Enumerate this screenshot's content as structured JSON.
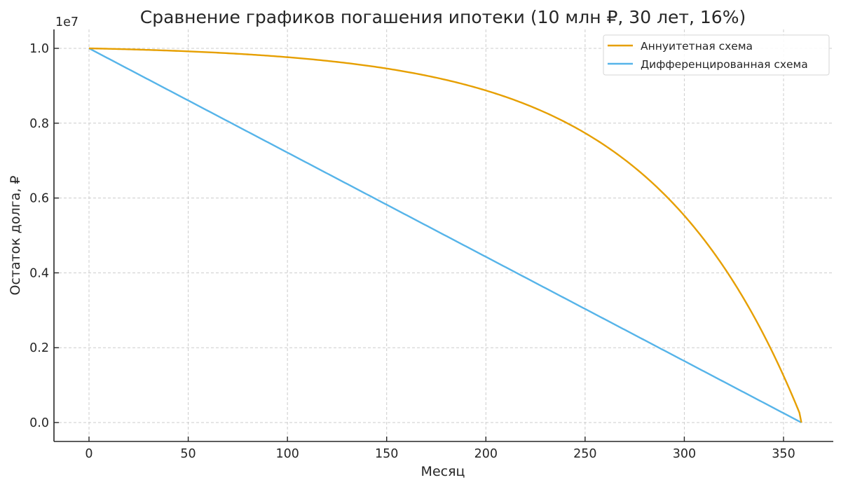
{
  "chart_data": {
    "type": "line",
    "title": "Сравнение графиков погашения ипотеки (10 млн ₽, 30 лет, 16%)",
    "xlabel": "Месяц",
    "ylabel": "Остаток долга, ₽",
    "y_offset_label": "1e7",
    "xlim": [
      -18,
      378
    ],
    "ylim": [
      -0.05,
      1.05
    ],
    "y_scale": 10000000,
    "x_ticks": [
      0,
      50,
      100,
      150,
      200,
      250,
      300,
      350
    ],
    "x_tick_labels": [
      "0",
      "50",
      "100",
      "150",
      "200",
      "250",
      "300",
      "350"
    ],
    "y_ticks": [
      0.0,
      0.2,
      0.4,
      0.6,
      0.8,
      1.0
    ],
    "y_tick_labels": [
      "0.0",
      "0.2",
      "0.4",
      "0.6",
      "0.8",
      "1.0"
    ],
    "grid": true,
    "legend_position": "upper right",
    "loan": {
      "principal": 10000000,
      "annual_rate": 0.16,
      "months": 360
    },
    "x": [
      0,
      30,
      60,
      90,
      120,
      150,
      180,
      210,
      240,
      270,
      300,
      330,
      359
    ],
    "series": [
      {
        "name": "Аннуитетная схема",
        "color": "#E69F00",
        "values": [
          10000000,
          9960000,
          9896000,
          9800000,
          9660000,
          9460000,
          9150000,
          8700000,
          8020000,
          7010000,
          5510000,
          3270000,
          0
        ]
      },
      {
        "name": "Дифференцированная схема",
        "color": "#56B4E9",
        "values": [
          10000000,
          9164000,
          8329000,
          7493000,
          6657000,
          5822000,
          4986000,
          4150000,
          3315000,
          2479000,
          1643000,
          808000,
          0
        ]
      }
    ]
  }
}
